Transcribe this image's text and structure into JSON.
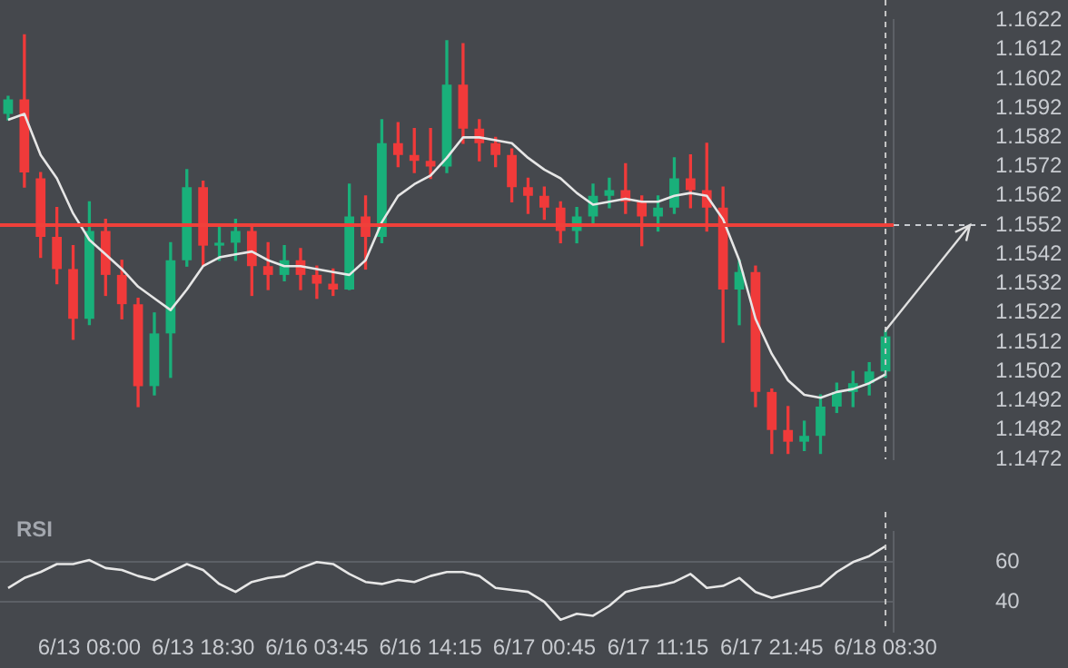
{
  "chart_data": [
    {
      "type": "candlestick",
      "categories": [
        null,
        null,
        null,
        null,
        null,
        "6/13 08:00",
        null,
        null,
        null,
        null,
        null,
        null,
        "6/13 18:30",
        null,
        null,
        null,
        null,
        null,
        null,
        "6/16 03:45",
        null,
        null,
        null,
        null,
        null,
        null,
        "6/16 14:15",
        null,
        null,
        null,
        null,
        null,
        null,
        "6/17 00:45",
        null,
        null,
        null,
        null,
        null,
        null,
        "6/17 11:15",
        null,
        null,
        null,
        null,
        null,
        null,
        "6/17 21:45",
        null,
        null,
        null,
        null,
        null,
        null,
        "6/18 08:30"
      ],
      "ohlc": [
        [
          1.159,
          1.1596,
          1.1588,
          1.1595
        ],
        [
          1.1595,
          1.1617,
          1.1565,
          1.157
        ],
        [
          1.1568,
          1.157,
          1.1541,
          1.1548
        ],
        [
          1.1548,
          1.1558,
          1.1532,
          1.1537
        ],
        [
          1.1537,
          1.1545,
          1.1513,
          1.152
        ],
        [
          1.152,
          1.156,
          1.1518,
          1.155
        ],
        [
          1.155,
          1.1554,
          1.1528,
          1.1535
        ],
        [
          1.1535,
          1.154,
          1.152,
          1.1525
        ],
        [
          1.1525,
          1.1527,
          1.149,
          1.1497
        ],
        [
          1.1497,
          1.1522,
          1.1494,
          1.1515
        ],
        [
          1.1515,
          1.1546,
          1.15,
          1.154
        ],
        [
          1.154,
          1.1571,
          1.1538,
          1.1565
        ],
        [
          1.1565,
          1.1567,
          1.1538,
          1.1545
        ],
        [
          1.1545,
          1.1552,
          1.154,
          1.1546
        ],
        [
          1.1546,
          1.1554,
          1.154,
          1.155
        ],
        [
          1.155,
          1.1552,
          1.1528,
          1.1538
        ],
        [
          1.1538,
          1.1546,
          1.153,
          1.1535
        ],
        [
          1.1535,
          1.1545,
          1.1533,
          1.154
        ],
        [
          1.154,
          1.1544,
          1.153,
          1.1535
        ],
        [
          1.1535,
          1.1538,
          1.1527,
          1.1532
        ],
        [
          1.1532,
          1.1537,
          1.1528,
          1.153
        ],
        [
          1.153,
          1.1566,
          1.153,
          1.1555
        ],
        [
          1.1555,
          1.1562,
          1.1537,
          1.1548
        ],
        [
          1.1548,
          1.1588,
          1.1546,
          1.158
        ],
        [
          1.158,
          1.1587,
          1.1572,
          1.1576
        ],
        [
          1.1576,
          1.1585,
          1.157,
          1.1574
        ],
        [
          1.1574,
          1.1585,
          1.1568,
          1.1572
        ],
        [
          1.1572,
          1.1615,
          1.157,
          1.16
        ],
        [
          1.16,
          1.1614,
          1.158,
          1.1585
        ],
        [
          1.1585,
          1.1588,
          1.1574,
          1.158
        ],
        [
          1.158,
          1.1582,
          1.1572,
          1.1576
        ],
        [
          1.1576,
          1.1578,
          1.156,
          1.1565
        ],
        [
          1.1565,
          1.1568,
          1.1556,
          1.1562
        ],
        [
          1.1562,
          1.1565,
          1.1554,
          1.1558
        ],
        [
          1.1558,
          1.156,
          1.1546,
          1.155
        ],
        [
          1.155,
          1.1558,
          1.1546,
          1.1555
        ],
        [
          1.1555,
          1.1566,
          1.1552,
          1.1562
        ],
        [
          1.1562,
          1.1568,
          1.1558,
          1.1564
        ],
        [
          1.1564,
          1.1573,
          1.1556,
          1.156
        ],
        [
          1.156,
          1.1562,
          1.1545,
          1.1555
        ],
        [
          1.1555,
          1.1562,
          1.155,
          1.1558
        ],
        [
          1.1558,
          1.1575,
          1.1556,
          1.1568
        ],
        [
          1.1568,
          1.1576,
          1.1558,
          1.1564
        ],
        [
          1.1564,
          1.158,
          1.155,
          1.1558
        ],
        [
          1.1558,
          1.1565,
          1.1512,
          1.153
        ],
        [
          1.153,
          1.154,
          1.1518,
          1.1536
        ],
        [
          1.1536,
          1.1538,
          1.149,
          1.1495
        ],
        [
          1.1495,
          1.1496,
          1.1474,
          1.1482
        ],
        [
          1.1482,
          1.149,
          1.1474,
          1.1478
        ],
        [
          1.1478,
          1.1485,
          1.1475,
          1.148
        ],
        [
          1.148,
          1.1494,
          1.1474,
          1.149
        ],
        [
          1.149,
          1.1498,
          1.1488,
          1.1495
        ],
        [
          1.1495,
          1.1502,
          1.149,
          1.1498
        ],
        [
          1.1498,
          1.1505,
          1.1494,
          1.1502
        ],
        [
          1.1502,
          1.1516,
          1.15,
          1.1514
        ]
      ],
      "colors": [
        "#19b07a",
        "#f03a3a",
        "#f03a3a",
        "#f03a3a",
        "#f03a3a",
        "#19b07a",
        "#f03a3a",
        "#f03a3a",
        "#f03a3a",
        "#19b07a",
        "#19b07a",
        "#19b07a",
        "#f03a3a",
        "#19b07a",
        "#19b07a",
        "#f03a3a",
        "#f03a3a",
        "#19b07a",
        "#f03a3a",
        "#f03a3a",
        "#f03a3a",
        "#19b07a",
        "#f03a3a",
        "#19b07a",
        "#f03a3a",
        "#f03a3a",
        "#f03a3a",
        "#19b07a",
        "#f03a3a",
        "#f03a3a",
        "#f03a3a",
        "#f03a3a",
        "#f03a3a",
        "#f03a3a",
        "#f03a3a",
        "#19b07a",
        "#19b07a",
        "#19b07a",
        "#f03a3a",
        "#f03a3a",
        "#19b07a",
        "#19b07a",
        "#f03a3a",
        "#f03a3a",
        "#f03a3a",
        "#19b07a",
        "#f03a3a",
        "#f03a3a",
        "#f03a3a",
        "#19b07a",
        "#19b07a",
        "#19b07a",
        "#19b07a",
        "#19b07a",
        "#19b07a"
      ],
      "series": [
        {
          "type": "line",
          "color": "#e6e6e6",
          "values": [
            1.1588,
            1.159,
            1.1576,
            1.1568,
            1.1556,
            1.1547,
            1.1542,
            1.1537,
            1.1531,
            1.1527,
            1.1523,
            1.153,
            1.1538,
            1.1541,
            1.1542,
            1.1543,
            1.154,
            1.1538,
            1.1538,
            1.1537,
            1.1536,
            1.1535,
            1.154,
            1.1553,
            1.1562,
            1.1566,
            1.1569,
            1.1575,
            1.1582,
            1.1582,
            1.1581,
            1.158,
            1.1575,
            1.1571,
            1.1568,
            1.1563,
            1.1559,
            1.156,
            1.1561,
            1.156,
            1.156,
            1.1562,
            1.1563,
            1.1562,
            1.1554,
            1.154,
            1.152,
            1.1508,
            1.1499,
            1.1494,
            1.1493,
            1.1495,
            1.1496,
            1.1498,
            1.1501
          ]
        }
      ],
      "ylim": [
        1.1472,
        1.1622
      ],
      "yticks": [
        1.1472,
        1.1482,
        1.1492,
        1.1502,
        1.1512,
        1.1522,
        1.1532,
        1.1542,
        1.1552,
        1.1562,
        1.1572,
        1.1582,
        1.1592,
        1.1602,
        1.1612,
        1.1622
      ],
      "ref_lines": [
        {
          "axis": "y",
          "value": 1.1552,
          "color": "#f0403a",
          "line_style": "solid"
        },
        {
          "axis": "x",
          "value": "6/18 08:30",
          "color": "#c8c8c8",
          "line_style": "dashed"
        }
      ],
      "tick_labels": "y",
      "legend": false,
      "grid": false
    },
    {
      "type": "line",
      "title": "RSI",
      "categories": [
        null,
        null,
        null,
        null,
        null,
        "6/13 08:00",
        null,
        null,
        null,
        null,
        null,
        null,
        "6/13 18:30",
        null,
        null,
        null,
        null,
        null,
        null,
        "6/16 03:45",
        null,
        null,
        null,
        null,
        null,
        null,
        "6/16 14:15",
        null,
        null,
        null,
        null,
        null,
        null,
        "6/17 00:45",
        null,
        null,
        null,
        null,
        null,
        null,
        "6/17 11:15",
        null,
        null,
        null,
        null,
        null,
        null,
        "6/17 21:45",
        null,
        null,
        null,
        null,
        null,
        null,
        "6/18 08:30"
      ],
      "series": [
        {
          "color": "#e6e6e6",
          "values": [
            47,
            52,
            55,
            59,
            59,
            61,
            57,
            56,
            53,
            51,
            55,
            59,
            56,
            49,
            45,
            50,
            52,
            53,
            57,
            60,
            59,
            54,
            50,
            49,
            51,
            50,
            53,
            55,
            55,
            53,
            47,
            46,
            45,
            40,
            31,
            34,
            33,
            38,
            45,
            47,
            48,
            50,
            54,
            47,
            48,
            52,
            45,
            42,
            44,
            46,
            48,
            55,
            60,
            63,
            68
          ]
        }
      ],
      "ylim": [
        25,
        75
      ],
      "yticks": [
        40,
        60
      ],
      "grid": "y",
      "legend": false,
      "marker": "none",
      "line_style": "solid",
      "ref_lines": [
        {
          "axis": "x",
          "value": "6/18 08:30",
          "color": "#c8c8c8",
          "line_style": "dashed"
        }
      ]
    }
  ]
}
